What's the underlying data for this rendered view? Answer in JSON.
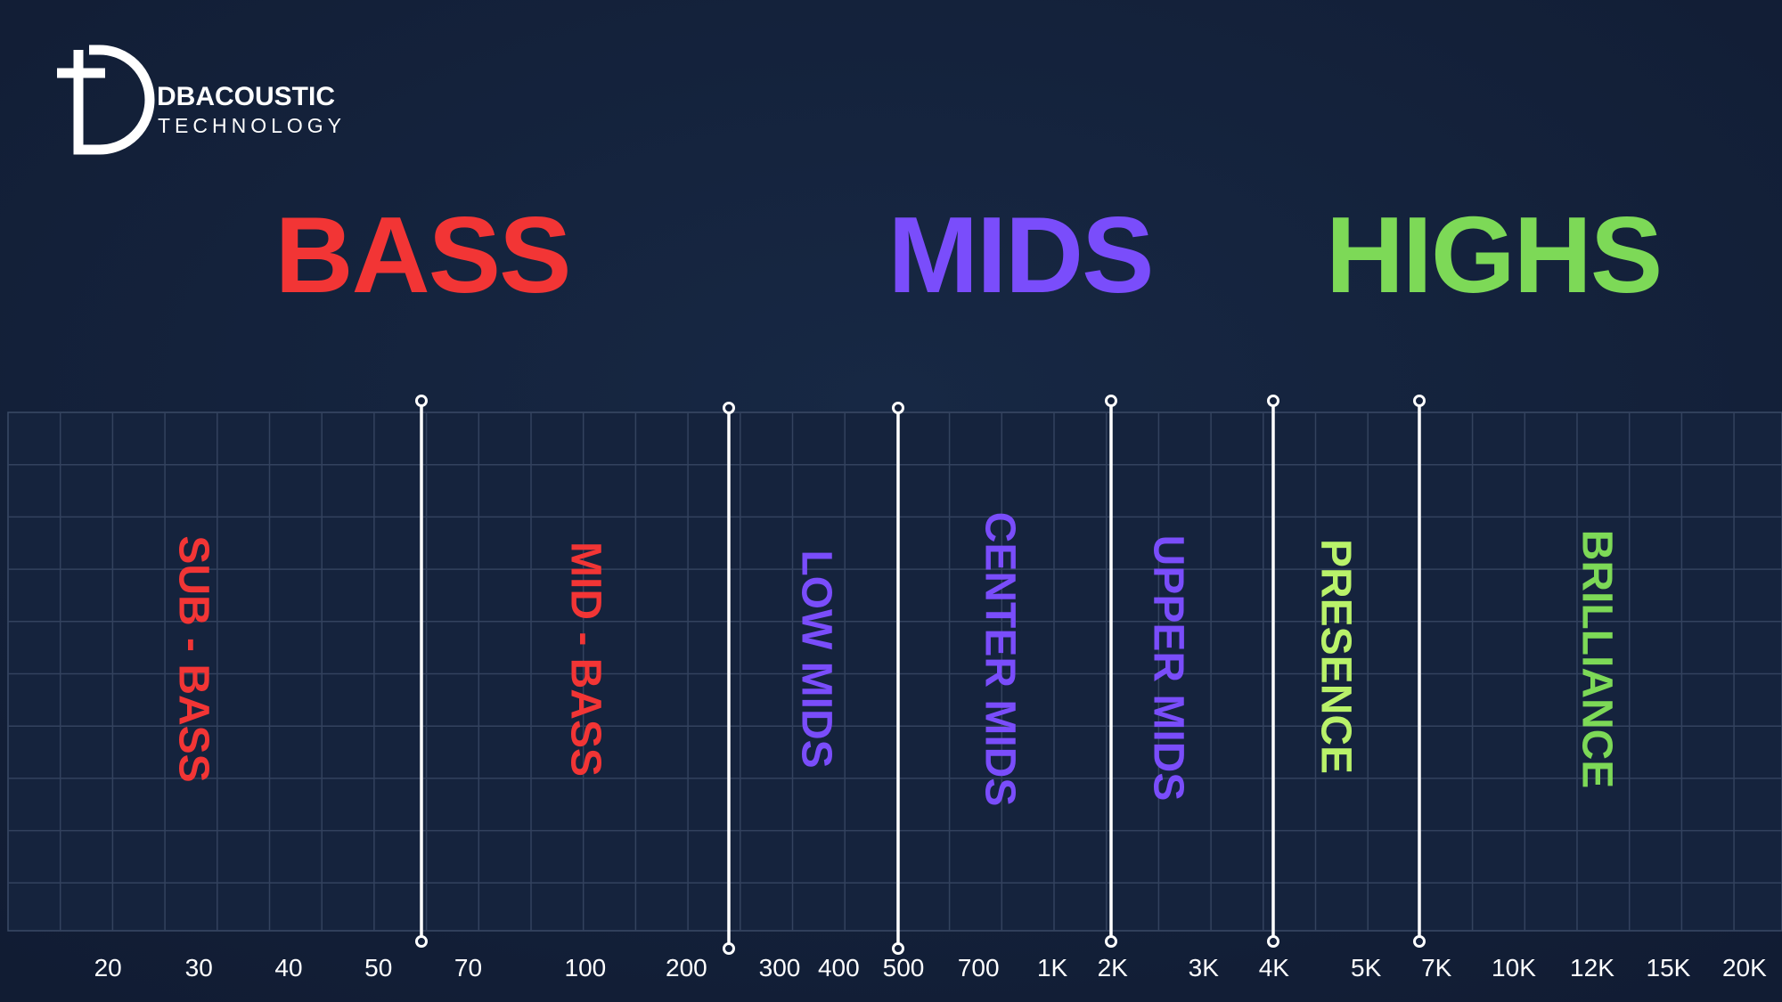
{
  "brand": {
    "name": "DBACOUSTIC",
    "tagline": "TECHNOLOGY"
  },
  "groups": [
    {
      "title": "BASS",
      "color": "#f23535"
    },
    {
      "title": "MIDS",
      "color": "#7a4dfb"
    },
    {
      "title": "HIGHS",
      "color": "#7dd957"
    }
  ],
  "bands": [
    {
      "label": "SUB - BASS",
      "color": "#f23535"
    },
    {
      "label": "MID - BASS",
      "color": "#f23535"
    },
    {
      "label": "LOW MIDS",
      "color": "#7a4dfb"
    },
    {
      "label": "CENTER MIDS",
      "color": "#7a4dfb"
    },
    {
      "label": "UPPER MIDS",
      "color": "#7a4dfb"
    },
    {
      "label": "PRESENCE",
      "color": "#b9f26a"
    },
    {
      "label": "BRILLIANCE",
      "color": "#7dd957"
    }
  ],
  "frequencies": [
    "20",
    "30",
    "40",
    "50",
    "70",
    "100",
    "200",
    "300",
    "400",
    "500",
    "700",
    "1K",
    "2K",
    "3K",
    "4K",
    "5K",
    "7K",
    "10K",
    "12K",
    "15K",
    "20K"
  ]
}
